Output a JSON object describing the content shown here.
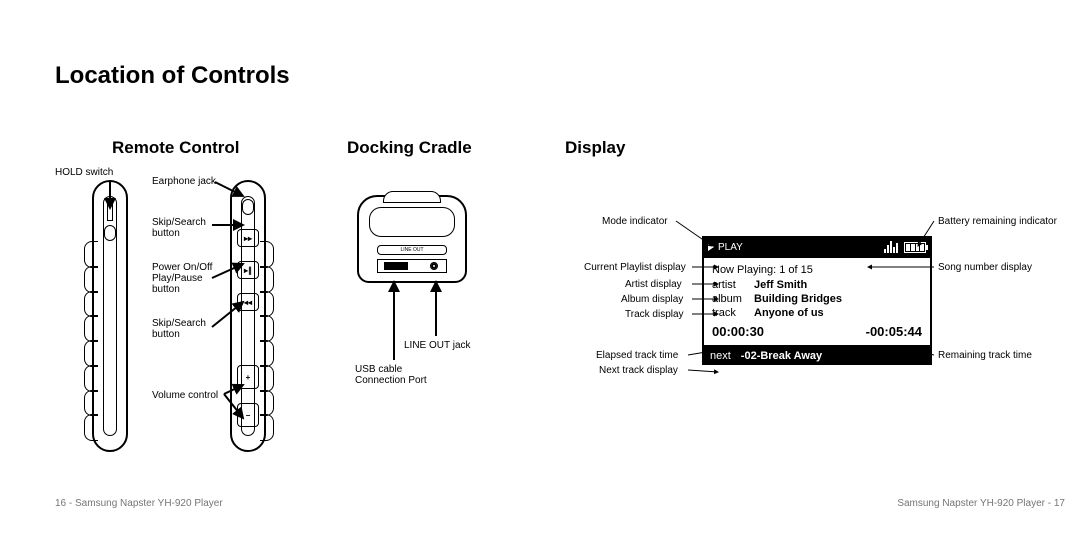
{
  "title": "Location of Controls",
  "sections": {
    "remote": "Remote Control",
    "dock": "Docking Cradle",
    "display": "Display"
  },
  "remote": {
    "hold_switch": "HOLD switch",
    "earphone_jack": "Earphone jack",
    "skip_fwd": "Skip/Search\nbutton",
    "power_play": "Power On/Off\nPlay/Pause\nbutton",
    "skip_back": "Skip/Search\nbutton",
    "volume": "Volume control"
  },
  "dock": {
    "strip": "LINE OUT",
    "lineout": "LINE OUT jack",
    "usb": "USB cable\nConnection Port"
  },
  "display_labels": {
    "mode": "Mode indicator",
    "battery": "Battery remaining indicator",
    "playlist": "Current Playlist display",
    "song_num": "Song number display",
    "artist": "Artist display",
    "album": "Album display",
    "track": "Track display",
    "elapsed": "Elapsed track time",
    "remaining": "Remaining track time",
    "next": "Next track display"
  },
  "screen": {
    "mode": "PLAY",
    "now_playing": "Now Playing: 1 of 15",
    "artist_k": "artist",
    "artist_v": "Jeff Smith",
    "album_k": "album",
    "album_v": "Building Bridges",
    "track_k": "track",
    "track_v": "Anyone of us",
    "elapsed": "00:00:30",
    "remaining": "-00:05:44",
    "next_k": "next",
    "next_v": "-02-Break Away",
    "eq_heights": [
      4,
      8,
      12,
      6,
      10
    ],
    "battery_bars": 4
  },
  "footer": {
    "left": "16 -  Samsung Napster YH-920 Player",
    "right": "Samsung Napster YH-920 Player - 17"
  },
  "colors": {
    "bg": "#ffffff",
    "fg": "#000000",
    "footer": "#757575"
  }
}
